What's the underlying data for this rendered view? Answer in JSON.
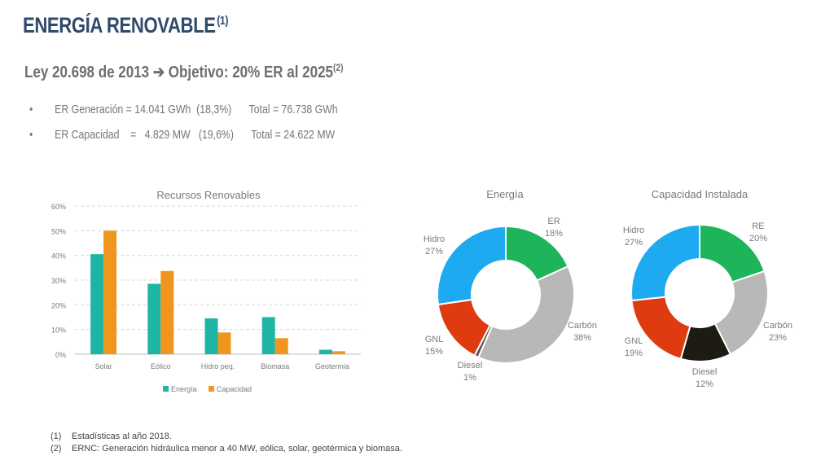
{
  "title": "ENERGÍA RENOVABLE",
  "title_sup": "(1)",
  "subtitle": "Ley 20.698 de 2013 ➔ Objetivo: 20% ER al 2025",
  "subtitle_sup": "(2)",
  "bullets": [
    {
      "label": "ER Generación = 14.041 GWh  (18,3%)",
      "total": "Total = 76.738 GWh"
    },
    {
      "label": "ER Capacidad    =   4.829 MW   (19,6%)",
      "total": "Total = 24.622 MW"
    }
  ],
  "footnotes": [
    {
      "num": "(1)",
      "text": "Estadísticas al año 2018."
    },
    {
      "num": "(2)",
      "text": "ERNC: Generación hidráulica menor a 40 MW, eólica, solar, geotérmica y biomasa."
    }
  ],
  "chart_data": [
    {
      "type": "bar",
      "title": "Recursos Renovables",
      "categories": [
        "Solar",
        "Eólico",
        "Hidro peq.",
        "Biomasa",
        "Geotermia"
      ],
      "series": [
        {
          "name": "Energía",
          "values": [
            40.5,
            28.5,
            14.5,
            15,
            1.8
          ],
          "color": "#1fb5a5"
        },
        {
          "name": "Capacidad",
          "values": [
            50,
            33.7,
            8.8,
            6.5,
            1.2
          ],
          "color": "#f0961e"
        }
      ],
      "yticks": [
        "0%",
        "10%",
        "20%",
        "30%",
        "40%",
        "50%",
        "60%"
      ],
      "ylim": [
        0,
        60
      ],
      "grid": true,
      "legend": "bottom"
    },
    {
      "type": "pie",
      "title": "Energía",
      "slices": [
        {
          "label": "ER",
          "pct": "18%",
          "value": 18,
          "color": "#1db45a"
        },
        {
          "label": "Carbón",
          "pct": "38%",
          "value": 38,
          "color": "#b8b8b8"
        },
        {
          "label": "Diesel",
          "pct": "1%",
          "value": 1,
          "color": "#555555"
        },
        {
          "label": "GNL",
          "pct": "15%",
          "value": 15,
          "color": "#e03a10"
        },
        {
          "label": "Hidro",
          "pct": "27%",
          "value": 27,
          "color": "#1eaaf0"
        }
      ]
    },
    {
      "type": "pie",
      "title": "Capacidad Instalada",
      "slices": [
        {
          "label": "RE",
          "pct": "20%",
          "value": 20,
          "color": "#1db45a"
        },
        {
          "label": "Carbón",
          "pct": "23%",
          "value": 23,
          "color": "#b8b8b8"
        },
        {
          "label": "Diesel",
          "pct": "12%",
          "value": 12,
          "color": "#1e1a14"
        },
        {
          "label": "GNL",
          "pct": "19%",
          "value": 19,
          "color": "#e03a10"
        },
        {
          "label": "Hidro",
          "pct": "27%",
          "value": 27,
          "color": "#1eaaf0"
        }
      ]
    }
  ]
}
